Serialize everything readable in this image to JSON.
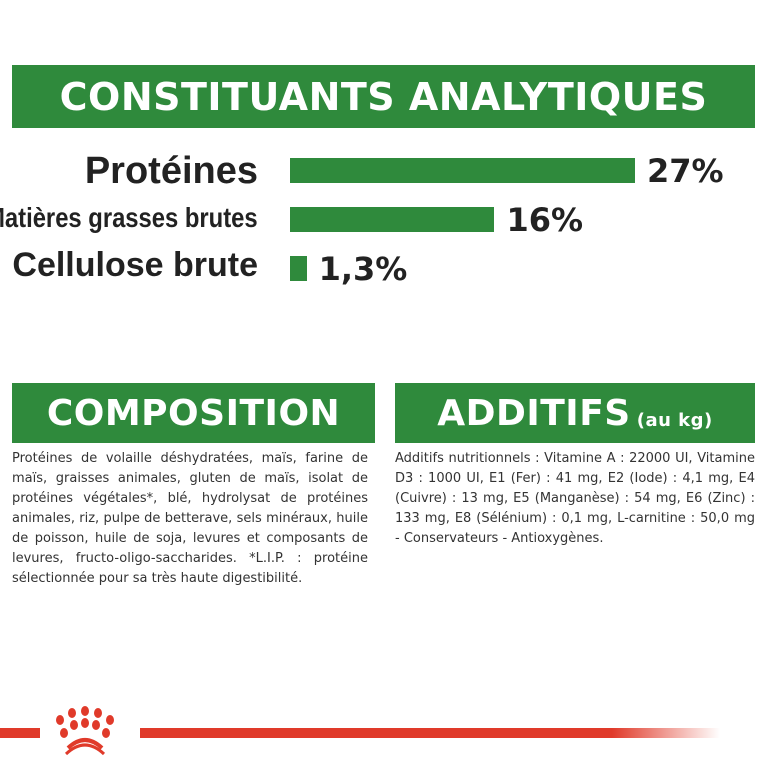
{
  "analytics": {
    "title": "CONSTITUANTS ANALYTIQUES"
  },
  "chart_data": {
    "type": "bar",
    "orientation": "horizontal",
    "categories": [
      "Protéines",
      "Matières grasses brutes",
      "Cellulose brute"
    ],
    "values": [
      27,
      16,
      1.3
    ],
    "value_labels": [
      "27%",
      "16%",
      "1,3%"
    ],
    "color": "#2f8a3c"
  },
  "composition": {
    "title": "COMPOSITION",
    "text": "Protéines de volaille déshydratées, maïs, farine de maïs, graisses animales, gluten de maïs, isolat de protéines végétales*, blé, hydrolysat de protéines animales, riz, pulpe de betterave, sels minéraux, huile de poisson, huile de soja, levures et composants de levures, fructo-oligo-saccharides. *L.I.P. : protéine sélectionnée pour sa très haute digestibilité."
  },
  "additifs": {
    "title": "ADDITIFS",
    "unit": "(au kg)",
    "text": "Additifs nutritionnels : Vitamine A : 22000 UI, Vitamine D3 : 1000 UI, E1 (Fer) : 41 mg, E2 (Iode) : 4,1 mg, E4 (Cuivre) : 13 mg, E5 (Manganèse) : 54 mg, E6 (Zinc) : 133 mg, E8 (Sélénium) : 0,1 mg, L-carnitine : 50,0 mg - Conservateurs - Antioxygènes."
  },
  "colors": {
    "green": "#2f8a3c",
    "red": "#e03a2a"
  },
  "logo": {
    "icon": "crown-icon"
  }
}
